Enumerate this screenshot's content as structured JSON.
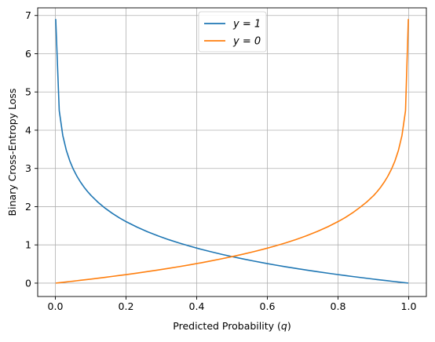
{
  "chart_data": {
    "type": "line",
    "title": "",
    "xlabel": "Predicted Probability",
    "xlabel_var": "q",
    "ylabel": "Binary Cross-Entropy Loss",
    "xlim": [
      -0.05,
      1.05
    ],
    "ylim": [
      -0.35,
      7.2
    ],
    "xticks": [
      "0.0",
      "0.2",
      "0.4",
      "0.6",
      "0.8",
      "1.0"
    ],
    "yticks": [
      "0",
      "1",
      "2",
      "3",
      "4",
      "5",
      "6",
      "7"
    ],
    "grid": true,
    "legend_placement": "top-center",
    "x": [
      0.001,
      0.011,
      0.021,
      0.031,
      0.041,
      0.051,
      0.061,
      0.071,
      0.081,
      0.091,
      0.101,
      0.121,
      0.141,
      0.161,
      0.181,
      0.201,
      0.231,
      0.261,
      0.291,
      0.321,
      0.351,
      0.381,
      0.411,
      0.441,
      0.471,
      0.501,
      0.531,
      0.561,
      0.591,
      0.621,
      0.651,
      0.681,
      0.711,
      0.741,
      0.771,
      0.801,
      0.821,
      0.841,
      0.861,
      0.881,
      0.901,
      0.911,
      0.921,
      0.931,
      0.941,
      0.951,
      0.961,
      0.971,
      0.981,
      0.991,
      0.999
    ],
    "series": [
      {
        "name": "y = 1",
        "label_text": "y = 1",
        "color": "#1f77b4",
        "values": [
          6.908,
          4.51,
          3.863,
          3.474,
          3.194,
          2.976,
          2.797,
          2.645,
          2.513,
          2.397,
          2.293,
          2.112,
          1.959,
          1.826,
          1.709,
          1.604,
          1.466,
          1.343,
          1.235,
          1.136,
          1.047,
          0.965,
          0.889,
          0.819,
          0.753,
          0.691,
          0.633,
          0.578,
          0.526,
          0.476,
          0.429,
          0.384,
          0.341,
          0.3,
          0.26,
          0.222,
          0.197,
          0.173,
          0.15,
          0.127,
          0.104,
          0.093,
          0.082,
          0.071,
          0.061,
          0.05,
          0.04,
          0.029,
          0.019,
          0.009,
          0.001
        ]
      },
      {
        "name": "y = 0",
        "label_text": "y = 0",
        "color": "#ff7f0e",
        "values": [
          0.001,
          0.011,
          0.021,
          0.031,
          0.042,
          0.052,
          0.063,
          0.074,
          0.084,
          0.095,
          0.106,
          0.129,
          0.152,
          0.176,
          0.2,
          0.224,
          0.262,
          0.302,
          0.344,
          0.387,
          0.432,
          0.48,
          0.529,
          0.582,
          0.637,
          0.695,
          0.756,
          0.822,
          0.892,
          0.968,
          1.05,
          1.14,
          1.239,
          1.35,
          1.474,
          1.614,
          1.719,
          1.838,
          1.973,
          2.12,
          2.293,
          2.397,
          2.513,
          2.645,
          2.797,
          2.976,
          3.194,
          3.474,
          3.863,
          4.51,
          6.908
        ]
      }
    ]
  }
}
